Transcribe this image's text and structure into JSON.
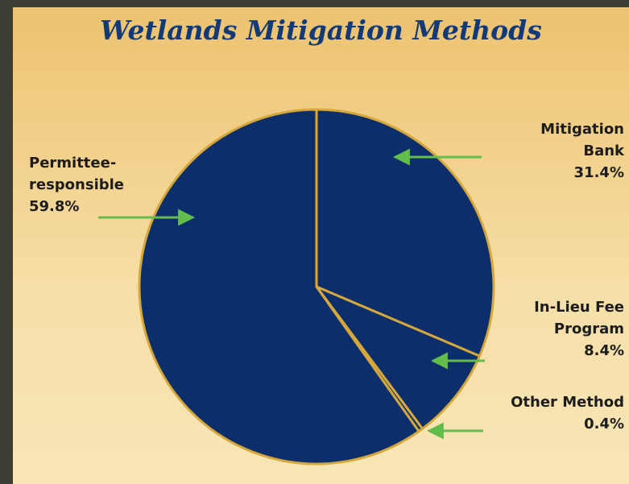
{
  "chart_data": {
    "type": "pie",
    "title": "Wetlands Mitigation Methods",
    "categories": [
      "Mitigation Bank",
      "In-Lieu Fee Program",
      "Other Method",
      "Permittee-responsible"
    ],
    "values": [
      31.4,
      8.4,
      0.4,
      59.8
    ],
    "value_labels": [
      "31.4%",
      "8.4%",
      "0.4%",
      "59.8%"
    ],
    "color": "#0c2f6c",
    "edge_color": "#d6a83c"
  }
}
